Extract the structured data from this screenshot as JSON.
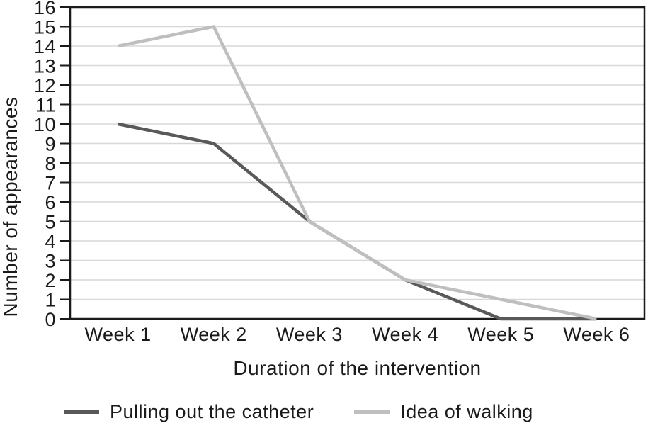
{
  "chart_data": {
    "type": "line",
    "categories": [
      "Week 1",
      "Week 2",
      "Week 3",
      "Week 4",
      "Week 5",
      "Week 6"
    ],
    "series": [
      {
        "name": "Pulling out the catheter",
        "values": [
          10,
          9,
          5,
          2,
          0,
          0
        ],
        "color": "#595959"
      },
      {
        "name": "Idea of walking",
        "values": [
          14,
          15,
          5,
          2,
          1,
          0
        ],
        "color": "#bfbfbf"
      }
    ],
    "title": "",
    "xlabel": "Duration of the intervention",
    "ylabel": "Number of appearances",
    "ylim": [
      0,
      16
    ],
    "yticks": [
      0,
      1,
      2,
      3,
      4,
      5,
      6,
      7,
      8,
      9,
      10,
      11,
      12,
      13,
      14,
      15,
      16
    ],
    "grid": true,
    "legend_position": "bottom"
  },
  "colors": {
    "background": "#ffffff",
    "grid": "#d7d7d7",
    "axis": "#1a1a1a",
    "text": "#1a1a1a",
    "series_dark": "#595959",
    "series_light": "#bfbfbf"
  }
}
